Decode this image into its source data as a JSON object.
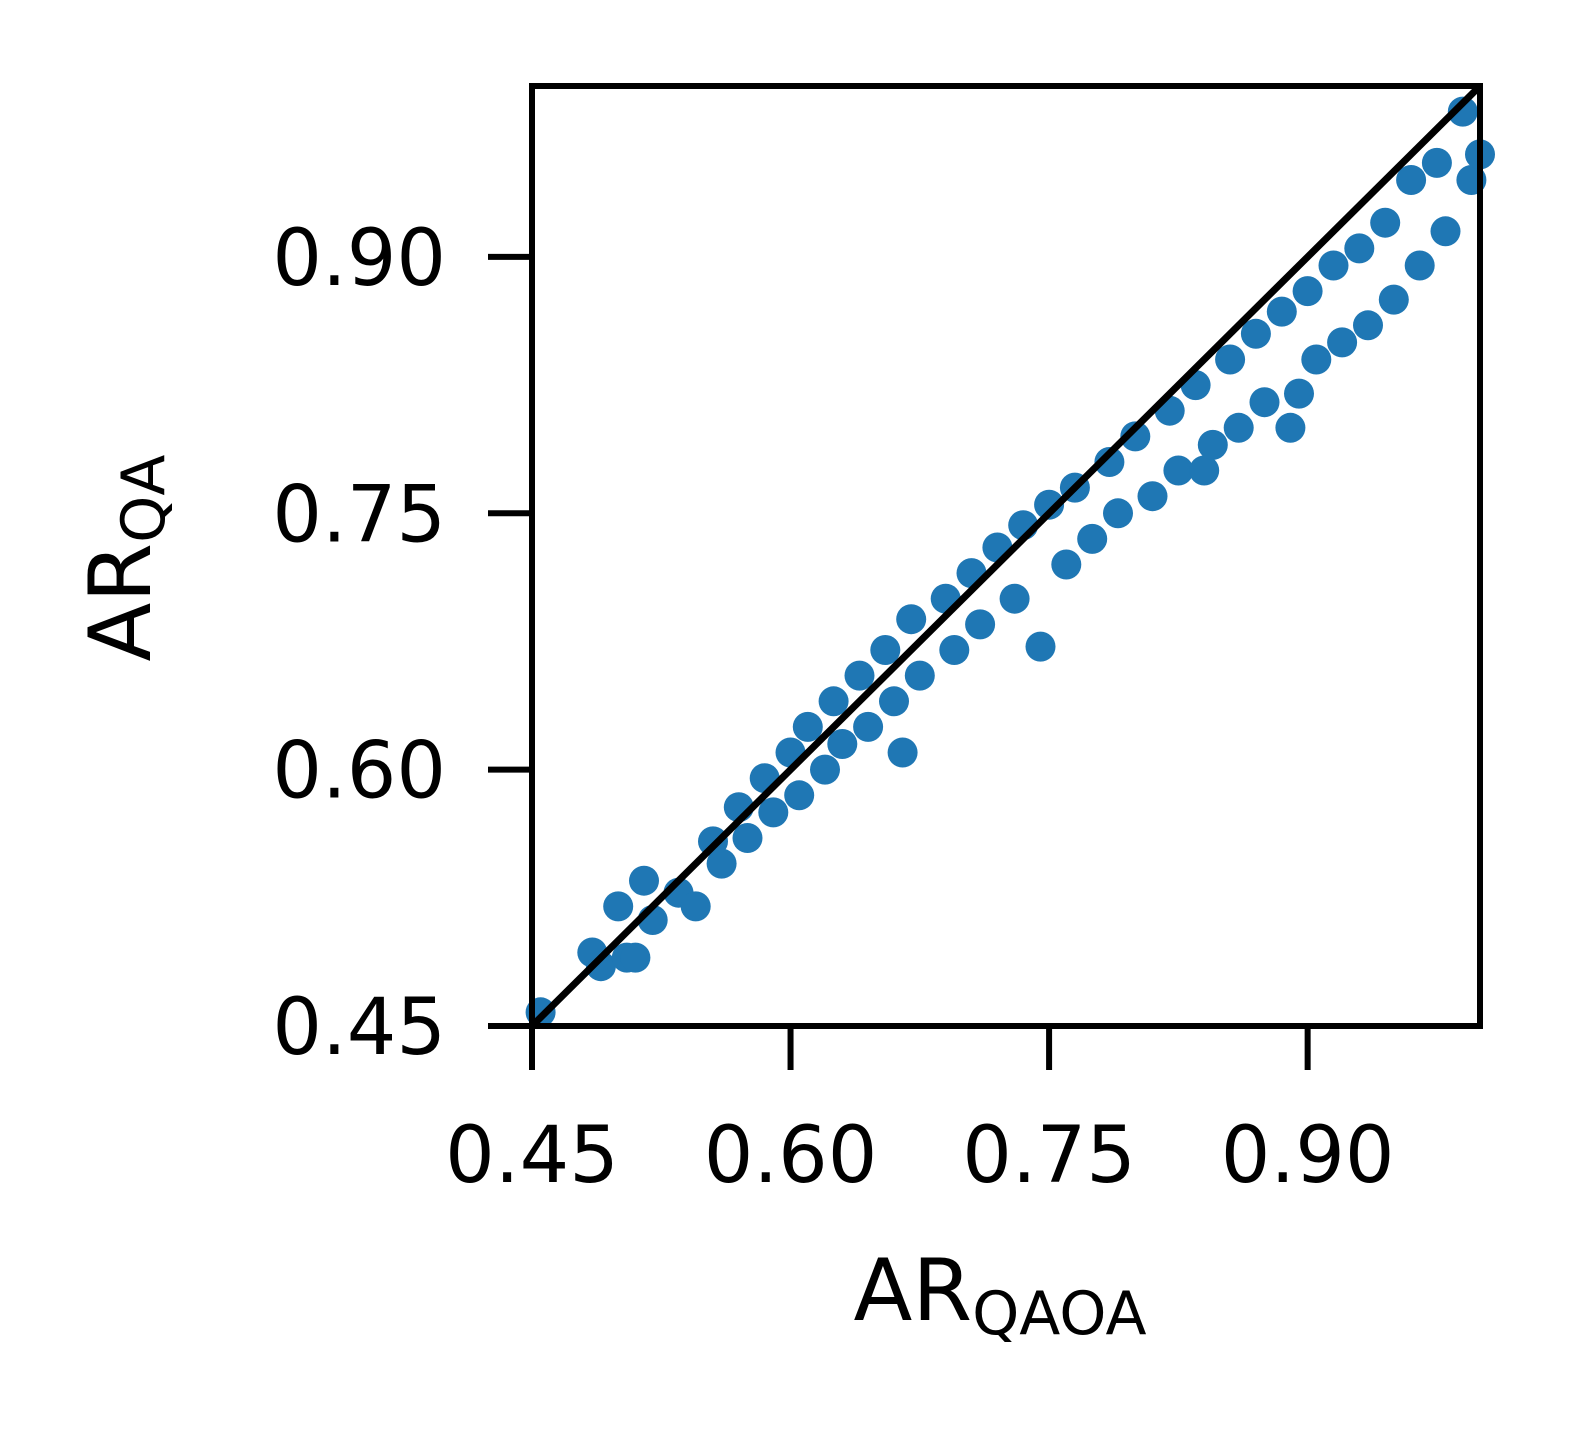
{
  "chart_data": {
    "type": "scatter",
    "xlabel_main": "AR",
    "xlabel_sub": "QAOA",
    "ylabel_main": "AR",
    "ylabel_sub": "QA",
    "xlim": [
      0.45,
      1.0
    ],
    "ylim": [
      0.45,
      1.0
    ],
    "xticks": [
      0.45,
      0.6,
      0.75,
      0.9
    ],
    "yticks": [
      0.45,
      0.6,
      0.75,
      0.9
    ],
    "xtick_labels": [
      "0.45",
      "0.60",
      "0.75",
      "0.90"
    ],
    "ytick_labels": [
      "0.45",
      "0.60",
      "0.75",
      "0.90"
    ],
    "grid": false,
    "reference_line": {
      "x": [
        0.45,
        1.0
      ],
      "y": [
        0.45,
        1.0
      ],
      "color": "#000000"
    },
    "series_color": "#1f77b4",
    "points": [
      [
        0.455,
        0.458
      ],
      [
        0.485,
        0.493
      ],
      [
        0.49,
        0.485
      ],
      [
        0.5,
        0.52
      ],
      [
        0.505,
        0.49
      ],
      [
        0.51,
        0.49
      ],
      [
        0.515,
        0.535
      ],
      [
        0.52,
        0.512
      ],
      [
        0.535,
        0.528
      ],
      [
        0.545,
        0.52
      ],
      [
        0.555,
        0.558
      ],
      [
        0.56,
        0.545
      ],
      [
        0.57,
        0.578
      ],
      [
        0.575,
        0.56
      ],
      [
        0.585,
        0.595
      ],
      [
        0.59,
        0.575
      ],
      [
        0.6,
        0.61
      ],
      [
        0.605,
        0.585
      ],
      [
        0.61,
        0.625
      ],
      [
        0.62,
        0.6
      ],
      [
        0.625,
        0.64
      ],
      [
        0.63,
        0.615
      ],
      [
        0.64,
        0.655
      ],
      [
        0.645,
        0.625
      ],
      [
        0.655,
        0.67
      ],
      [
        0.66,
        0.64
      ],
      [
        0.665,
        0.61
      ],
      [
        0.67,
        0.688
      ],
      [
        0.675,
        0.655
      ],
      [
        0.69,
        0.7
      ],
      [
        0.695,
        0.67
      ],
      [
        0.705,
        0.715
      ],
      [
        0.71,
        0.685
      ],
      [
        0.72,
        0.73
      ],
      [
        0.73,
        0.7
      ],
      [
        0.735,
        0.743
      ],
      [
        0.745,
        0.672
      ],
      [
        0.75,
        0.755
      ],
      [
        0.76,
        0.72
      ],
      [
        0.765,
        0.765
      ],
      [
        0.775,
        0.735
      ],
      [
        0.785,
        0.78
      ],
      [
        0.79,
        0.75
      ],
      [
        0.8,
        0.795
      ],
      [
        0.81,
        0.76
      ],
      [
        0.82,
        0.81
      ],
      [
        0.825,
        0.775
      ],
      [
        0.835,
        0.825
      ],
      [
        0.84,
        0.775
      ],
      [
        0.845,
        0.79
      ],
      [
        0.855,
        0.84
      ],
      [
        0.86,
        0.8
      ],
      [
        0.87,
        0.855
      ],
      [
        0.875,
        0.815
      ],
      [
        0.885,
        0.868
      ],
      [
        0.89,
        0.8
      ],
      [
        0.895,
        0.82
      ],
      [
        0.9,
        0.88
      ],
      [
        0.905,
        0.84
      ],
      [
        0.915,
        0.895
      ],
      [
        0.92,
        0.85
      ],
      [
        0.93,
        0.905
      ],
      [
        0.935,
        0.86
      ],
      [
        0.945,
        0.92
      ],
      [
        0.95,
        0.875
      ],
      [
        0.96,
        0.945
      ],
      [
        0.965,
        0.895
      ],
      [
        0.975,
        0.955
      ],
      [
        0.98,
        0.915
      ],
      [
        0.99,
        0.985
      ],
      [
        0.995,
        0.945
      ],
      [
        1.0,
        0.96
      ]
    ]
  }
}
